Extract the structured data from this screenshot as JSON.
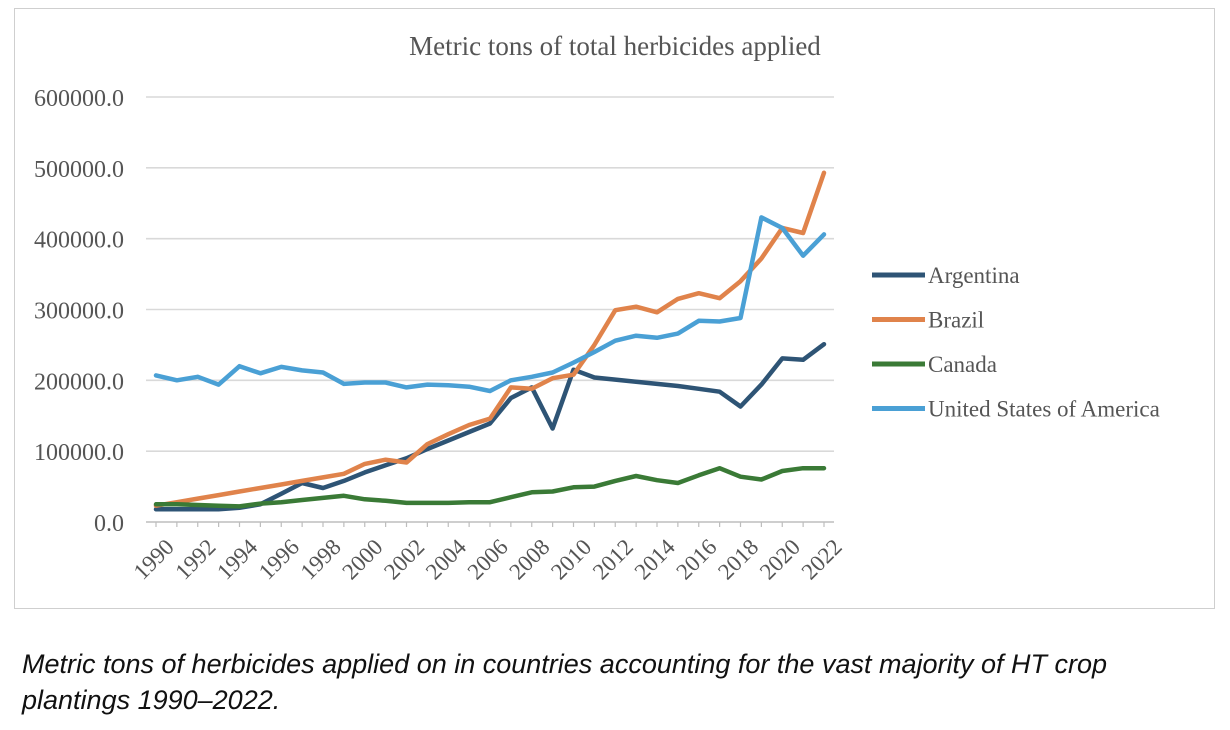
{
  "chart_data": {
    "type": "line",
    "title": "Metric tons of total herbicides applied",
    "xlabel": "",
    "ylabel": "",
    "ylim": [
      0,
      600000
    ],
    "yticks": [
      0,
      100000,
      200000,
      300000,
      400000,
      500000,
      600000
    ],
    "ytick_labels": [
      "0.0",
      "100000.0",
      "200000.0",
      "300000.0",
      "400000.0",
      "500000.0",
      "600000.0"
    ],
    "x": [
      1990,
      1991,
      1992,
      1993,
      1994,
      1995,
      1996,
      1997,
      1998,
      1999,
      2000,
      2001,
      2002,
      2003,
      2004,
      2005,
      2006,
      2007,
      2008,
      2009,
      2010,
      2011,
      2012,
      2013,
      2014,
      2015,
      2016,
      2017,
      2018,
      2019,
      2020,
      2021,
      2022
    ],
    "xtick_labels": [
      "1990",
      "1992",
      "1994",
      "1996",
      "1998",
      "2000",
      "2002",
      "2004",
      "2006",
      "2008",
      "2010",
      "2012",
      "2014",
      "2016",
      "2018",
      "2020",
      "2022"
    ],
    "legend_position": "right",
    "grid": true,
    "series": [
      {
        "name": "Argentina",
        "color": "#2e5475",
        "values": [
          18000,
          18000,
          18000,
          18000,
          20000,
          25000,
          40000,
          55000,
          48000,
          58000,
          70000,
          80000,
          90000,
          103000,
          115000,
          127000,
          139000,
          175000,
          190000,
          132000,
          215000,
          204000,
          201000,
          198000,
          195000,
          192000,
          188000,
          184000,
          163000,
          194000,
          231000,
          229000,
          251000
        ]
      },
      {
        "name": "Brazil",
        "color": "#e0834b",
        "values": [
          23000,
          28000,
          33000,
          38000,
          43000,
          48000,
          53000,
          58000,
          63000,
          68000,
          82000,
          88000,
          84000,
          110000,
          124000,
          137000,
          146000,
          190000,
          188000,
          203000,
          208000,
          250000,
          299000,
          304000,
          296000,
          315000,
          323000,
          316000,
          340000,
          372000,
          415000,
          408000,
          493000
        ]
      },
      {
        "name": "Canada",
        "color": "#3a7a36",
        "values": [
          25000,
          25000,
          24000,
          23000,
          22000,
          26000,
          28000,
          31000,
          34000,
          37000,
          32000,
          30000,
          27000,
          27000,
          27000,
          28000,
          28000,
          35000,
          42000,
          43000,
          49000,
          50000,
          58000,
          65000,
          59000,
          55000,
          66000,
          76000,
          64000,
          60000,
          72000,
          76000,
          76000
        ]
      },
      {
        "name": "United States of America",
        "color": "#4aa0d5",
        "values": [
          207000,
          200000,
          205000,
          194000,
          220000,
          210000,
          219000,
          214000,
          211000,
          195000,
          197000,
          197000,
          190000,
          194000,
          193000,
          191000,
          185000,
          200000,
          205000,
          211000,
          225000,
          240000,
          256000,
          263000,
          260000,
          266000,
          284000,
          283000,
          288000,
          430000,
          415000,
          376000,
          406000
        ]
      }
    ]
  },
  "caption": "Metric tons of herbicides applied on in countries accounting for the vast majority of HT crop plantings 1990–2022."
}
